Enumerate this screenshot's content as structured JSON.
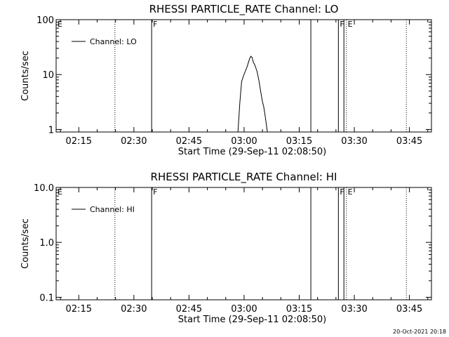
{
  "chart_data": [
    {
      "type": "line",
      "title": "RHESSI PARTICLE_RATE Channel: LO",
      "xlabel": "Start Time (29-Sep-11 02:08:50)",
      "ylabel": "Counts/sec",
      "y_scale": "log",
      "xlim": [
        "02:08:50",
        "03:51:00"
      ],
      "ylim": [
        0.9,
        100
      ],
      "x_ticks": [
        "02:15",
        "02:30",
        "02:45",
        "03:00",
        "03:15",
        "03:30",
        "03:45"
      ],
      "y_ticks": [
        "1",
        "10",
        "100"
      ],
      "legend": {
        "position": "top-left",
        "entries": [
          "Channel: LO"
        ]
      },
      "series": [
        {
          "name": "Channel: LO",
          "x": [
            "02:58:20",
            "02:58:50",
            "02:59:20",
            "02:59:50",
            "03:00:20",
            "03:00:50",
            "03:01:10",
            "03:01:30",
            "03:01:50",
            "03:02:10",
            "03:02:30",
            "03:03:00",
            "03:03:30",
            "03:04:00",
            "03:04:30",
            "03:05:00",
            "03:05:20",
            "03:05:40",
            "03:06:00",
            "03:06:20"
          ],
          "y": [
            0.9,
            3.0,
            7.5,
            9.5,
            11.5,
            14.0,
            16.5,
            19.5,
            21.5,
            20.5,
            17.0,
            14.5,
            11.5,
            8.0,
            5.0,
            3.2,
            2.6,
            1.9,
            1.3,
            0.9
          ]
        }
      ],
      "event_markers": [
        {
          "time": "02:24:50",
          "label": "",
          "style": "dotted"
        },
        {
          "time": "02:34:50",
          "label": "F",
          "style": "solid"
        },
        {
          "time": "03:18:10",
          "label": "",
          "style": "solid"
        },
        {
          "time": "03:25:40",
          "label": "F",
          "style": "solid"
        },
        {
          "time": "03:27:10",
          "label": "",
          "style": "solid"
        },
        {
          "time": "03:27:50",
          "label": "E",
          "style": "dotted"
        },
        {
          "time": "03:44:10",
          "label": "",
          "style": "dotted"
        }
      ],
      "corner_label": "E"
    },
    {
      "type": "line",
      "title": "RHESSI PARTICLE_RATE Channel: HI",
      "xlabel": "Start Time (29-Sep-11 02:08:50)",
      "ylabel": "Counts/sec",
      "y_scale": "log",
      "xlim": [
        "02:08:50",
        "03:51:00"
      ],
      "ylim": [
        0.09,
        10
      ],
      "x_ticks": [
        "02:15",
        "02:30",
        "02:45",
        "03:00",
        "03:15",
        "03:30",
        "03:45"
      ],
      "y_ticks": [
        "0.1",
        "1.0",
        "10.0"
      ],
      "legend": {
        "position": "top-left",
        "entries": [
          "Channel: HI"
        ]
      },
      "series": [
        {
          "name": "Channel: HI",
          "x": [],
          "y": []
        }
      ],
      "event_markers": [
        {
          "time": "02:24:50",
          "label": "",
          "style": "dotted"
        },
        {
          "time": "02:34:50",
          "label": "F",
          "style": "solid"
        },
        {
          "time": "03:18:10",
          "label": "",
          "style": "solid"
        },
        {
          "time": "03:25:40",
          "label": "F",
          "style": "solid"
        },
        {
          "time": "03:27:10",
          "label": "",
          "style": "solid"
        },
        {
          "time": "03:27:50",
          "label": "E",
          "style": "dotted"
        },
        {
          "time": "03:44:10",
          "label": "",
          "style": "dotted"
        }
      ],
      "corner_label": "E"
    }
  ],
  "footer": {
    "timestamp": "20-Oct-2021 20:18"
  }
}
